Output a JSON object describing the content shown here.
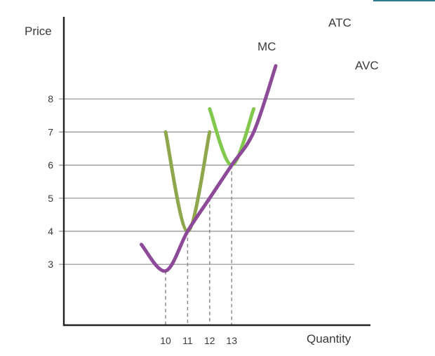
{
  "chart_data": {
    "type": "line",
    "title": "",
    "xlabel": "Quantity",
    "ylabel": "Price",
    "yticks": [
      3,
      4,
      5,
      6,
      7,
      8
    ],
    "xticks": [
      10,
      11,
      12,
      13
    ],
    "grid": true,
    "series": [
      {
        "name": "MC",
        "color": "#8c4a98",
        "x": [
          8.9,
          10.0,
          11.0,
          12.0,
          13.0,
          14.0,
          15.0
        ],
        "y": [
          3.6,
          2.8,
          4.0,
          5.0,
          6.0,
          7.0,
          9.0
        ]
      },
      {
        "name": "ATC",
        "color": "#82c84d",
        "x": [
          12.0,
          13.0,
          14.0
        ],
        "y": [
          7.7,
          6.0,
          7.7
        ]
      },
      {
        "name": "AVC",
        "color": "#8ea74c",
        "x": [
          10.0,
          11.0,
          12.0
        ],
        "y": [
          7.0,
          4.0,
          7.0
        ]
      }
    ],
    "dropLines": [
      {
        "x": 10,
        "y": 2.8
      },
      {
        "x": 11,
        "y": 4.0
      },
      {
        "x": 12,
        "y": 5.0
      },
      {
        "x": 13,
        "y": 6.0
      }
    ]
  }
}
